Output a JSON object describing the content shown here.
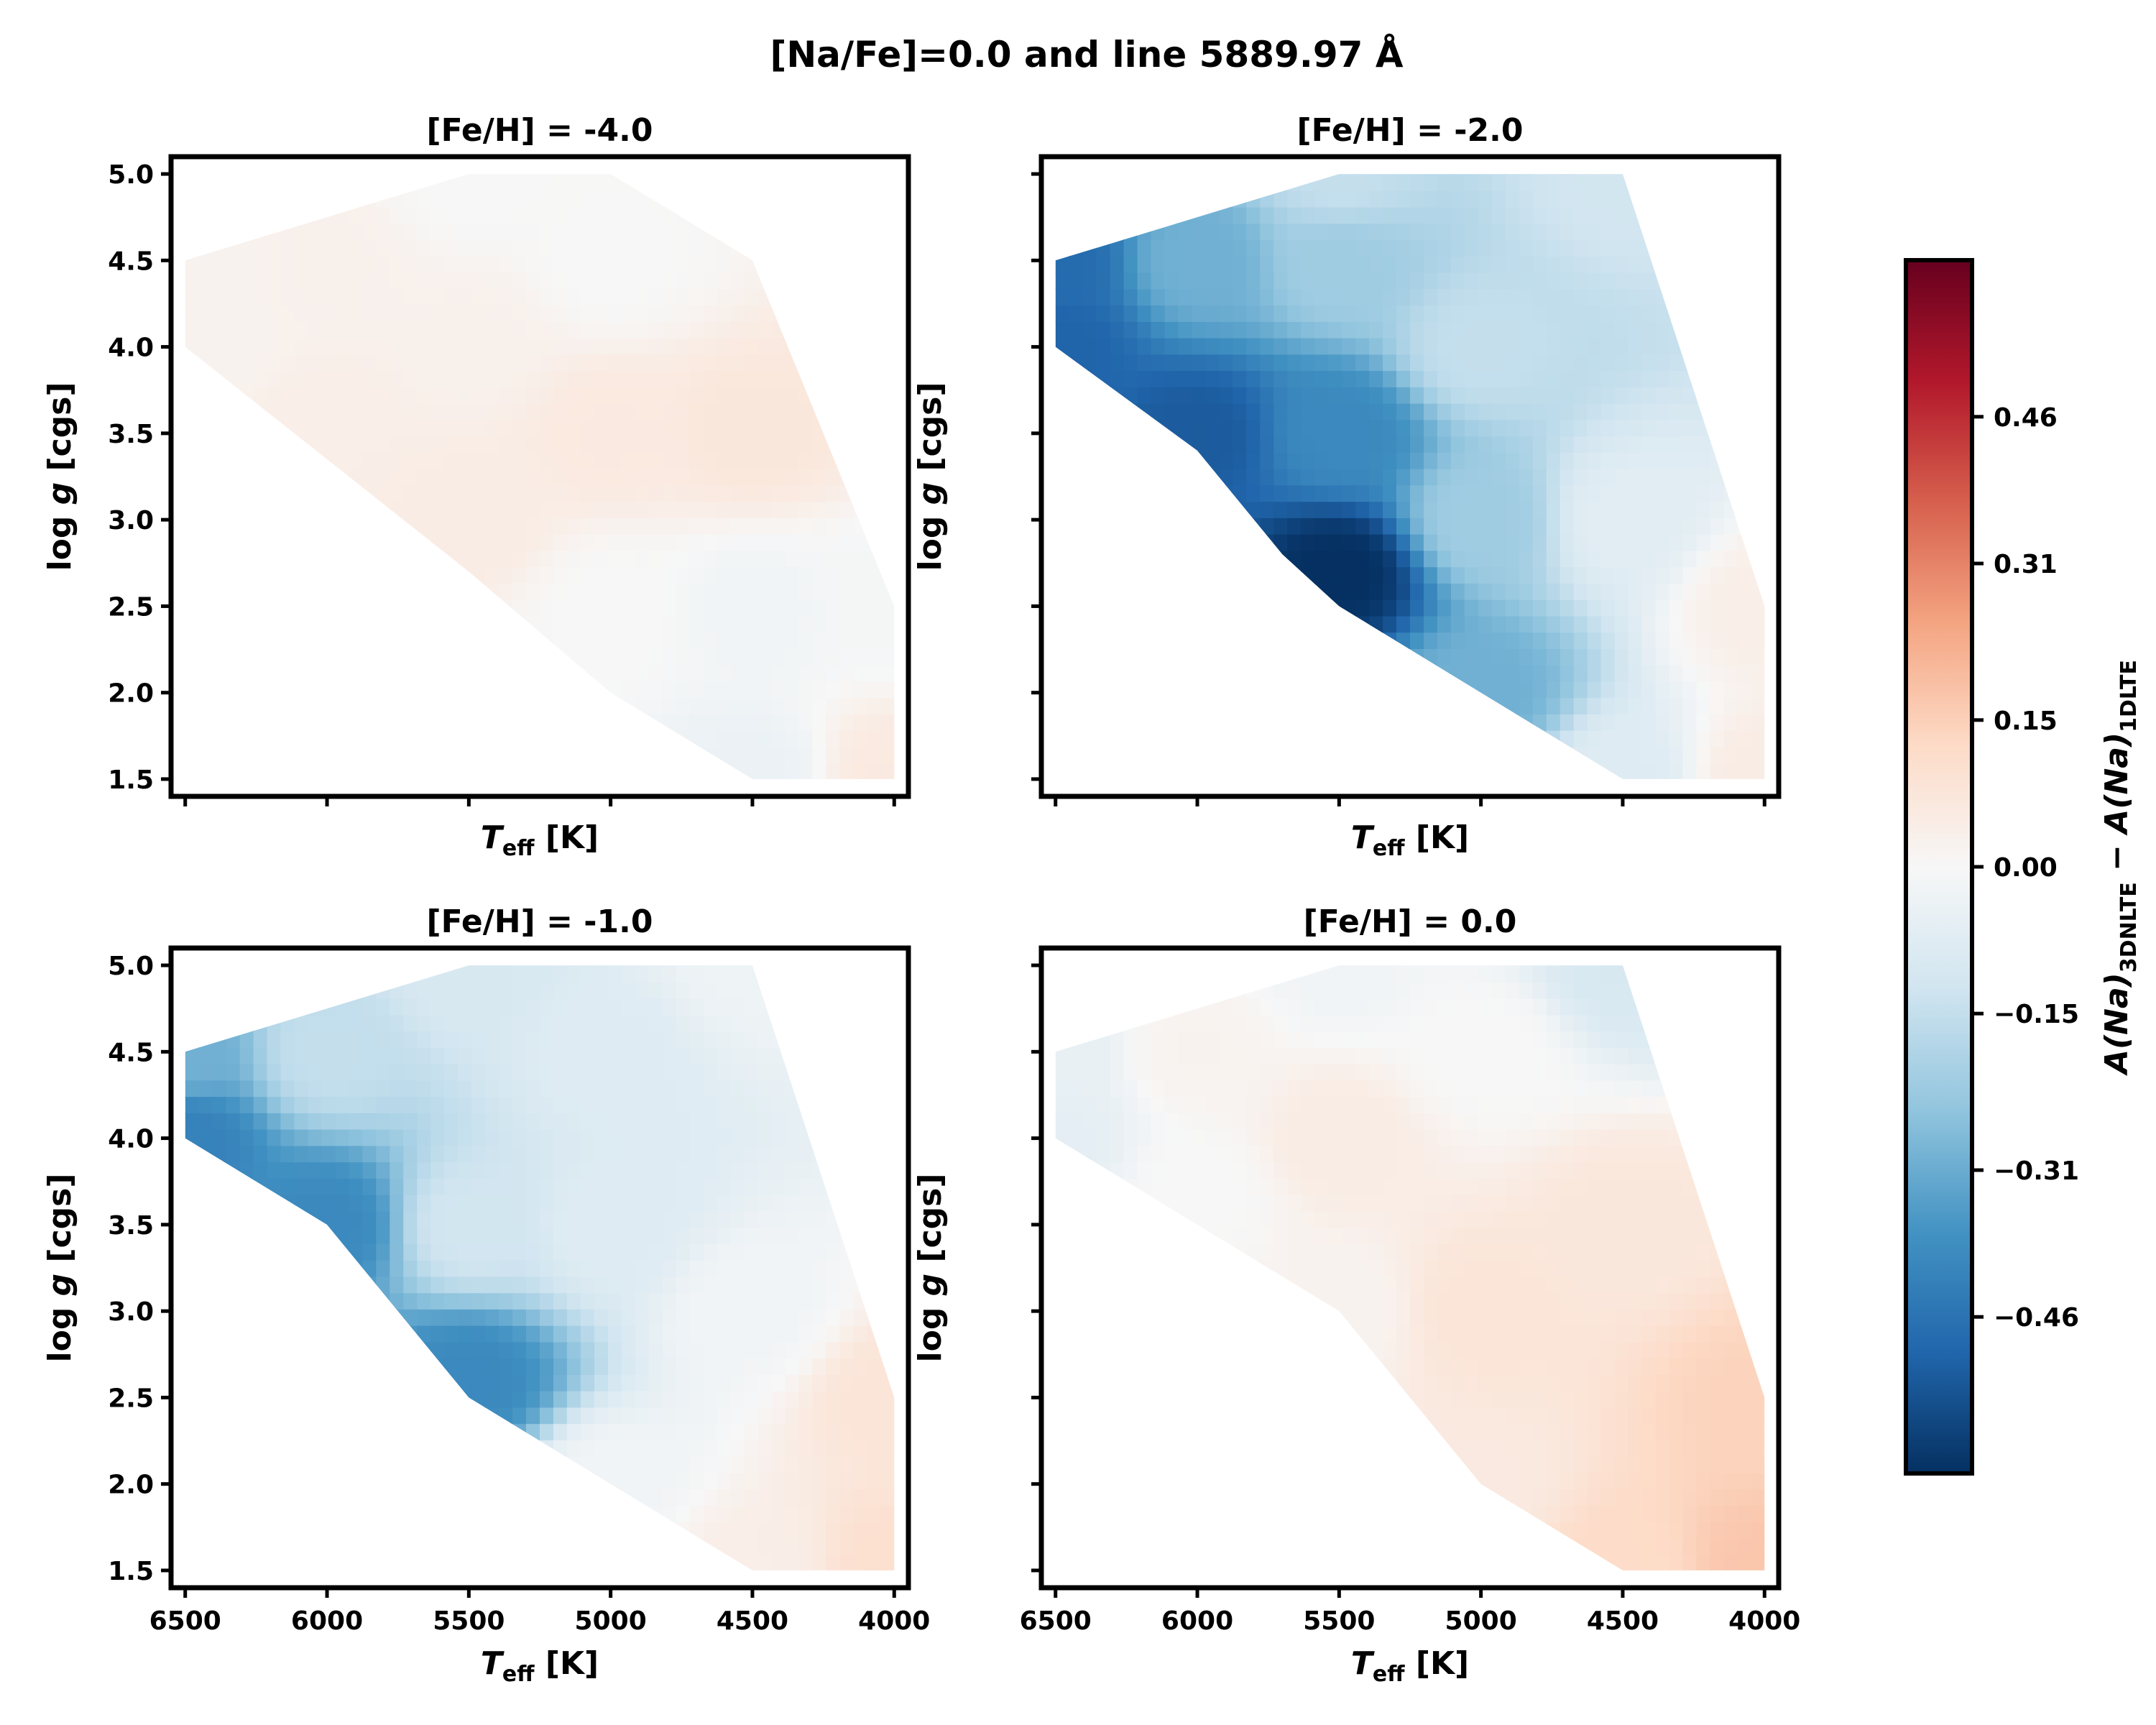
{
  "figure": {
    "suptitle": "[Na/Fe]=0.0 and line 5889.97 Å"
  },
  "colorbar": {
    "label_main": "A(Na)",
    "label_sub1": "3DNLTE",
    "label_minus": " − ",
    "label_main2": "A(Na)",
    "label_sub2": "1DLTE",
    "min": -0.62,
    "max": 0.62,
    "ticks": [
      0.46,
      0.31,
      0.15,
      0.0,
      -0.15,
      -0.31,
      -0.46
    ],
    "tick_labels": [
      "0.46",
      "0.31",
      "0.15",
      "0.00",
      "−0.15",
      "−0.31",
      "−0.46"
    ],
    "colors": {
      "low": "#053061",
      "mid": "#f7f7f7",
      "high": "#67001f"
    }
  },
  "axes_common": {
    "xlabel_main": "T",
    "xlabel_sub": "eff",
    "xlabel_unit": " [K]",
    "ylabel_main": "log ",
    "ylabel_g": "g",
    "ylabel_unit": " [cgs]",
    "xlim": [
      6550,
      3950
    ],
    "ylim": [
      5.1,
      1.4
    ],
    "xticks": [
      6500,
      6000,
      5500,
      5000,
      4500,
      4000
    ],
    "xtick_labels": [
      "6500",
      "6000",
      "5500",
      "5000",
      "4500",
      "4000"
    ],
    "yticks": [
      1.5,
      2.0,
      2.5,
      3.0,
      3.5,
      4.0,
      4.5,
      5.0
    ],
    "ytick_labels": [
      "1.5",
      "2.0",
      "2.5",
      "3.0",
      "3.5",
      "4.0",
      "4.5",
      "5.0"
    ]
  },
  "chart_data": [
    {
      "type": "heatmap",
      "title": "[Fe/H] = -4.0",
      "xlabel": "T_eff [K]",
      "ylabel": "log g [cgs]",
      "region": [
        [
          6500,
          4.5
        ],
        [
          6500,
          4.0
        ],
        [
          5500,
          2.7
        ],
        [
          5000,
          2.0
        ],
        [
          4500,
          1.5
        ],
        [
          4000,
          1.5
        ],
        [
          4000,
          2.5
        ],
        [
          4500,
          4.5
        ],
        [
          5000,
          5.0
        ],
        [
          5500,
          5.0
        ]
      ],
      "values": [
        {
          "teff": 6500,
          "logg": 4.0,
          "value": 0.02
        },
        {
          "teff": 6500,
          "logg": 4.5,
          "value": 0.02
        },
        {
          "teff": 6000,
          "logg": 3.5,
          "value": 0.04
        },
        {
          "teff": 6000,
          "logg": 4.5,
          "value": 0.03
        },
        {
          "teff": 5500,
          "logg": 3.0,
          "value": 0.05
        },
        {
          "teff": 5500,
          "logg": 4.0,
          "value": 0.03
        },
        {
          "teff": 5500,
          "logg": 5.0,
          "value": 0.0
        },
        {
          "teff": 5000,
          "logg": 2.5,
          "value": 0.0
        },
        {
          "teff": 5000,
          "logg": 3.5,
          "value": 0.06
        },
        {
          "teff": 5000,
          "logg": 4.5,
          "value": 0.0
        },
        {
          "teff": 4500,
          "logg": 1.5,
          "value": -0.04
        },
        {
          "teff": 4500,
          "logg": 2.5,
          "value": -0.02
        },
        {
          "teff": 4500,
          "logg": 3.5,
          "value": 0.07
        },
        {
          "teff": 4000,
          "logg": 1.5,
          "value": 0.06
        },
        {
          "teff": 4000,
          "logg": 2.5,
          "value": -0.01
        }
      ]
    },
    {
      "type": "heatmap",
      "title": "[Fe/H] = -2.0",
      "xlabel": "T_eff [K]",
      "ylabel": "log g [cgs]",
      "region": [
        [
          6500,
          4.5
        ],
        [
          6500,
          4.0
        ],
        [
          6000,
          3.4
        ],
        [
          5700,
          2.8
        ],
        [
          5500,
          2.5
        ],
        [
          5000,
          2.0
        ],
        [
          4500,
          1.5
        ],
        [
          4000,
          1.5
        ],
        [
          4000,
          2.5
        ],
        [
          4500,
          5.0
        ],
        [
          5500,
          5.0
        ]
      ],
      "values": [
        {
          "teff": 6500,
          "logg": 4.0,
          "value": -0.5
        },
        {
          "teff": 6500,
          "logg": 4.5,
          "value": -0.48
        },
        {
          "teff": 6000,
          "logg": 3.5,
          "value": -0.52
        },
        {
          "teff": 6000,
          "logg": 4.5,
          "value": -0.3
        },
        {
          "teff": 5500,
          "logg": 2.7,
          "value": -0.62
        },
        {
          "teff": 5500,
          "logg": 3.5,
          "value": -0.4
        },
        {
          "teff": 5500,
          "logg": 4.5,
          "value": -0.22
        },
        {
          "teff": 5500,
          "logg": 5.0,
          "value": -0.15
        },
        {
          "teff": 5000,
          "logg": 2.0,
          "value": -0.3
        },
        {
          "teff": 5000,
          "logg": 3.0,
          "value": -0.22
        },
        {
          "teff": 5000,
          "logg": 4.0,
          "value": -0.15
        },
        {
          "teff": 4500,
          "logg": 1.5,
          "value": -0.08
        },
        {
          "teff": 4500,
          "logg": 3.0,
          "value": -0.07
        },
        {
          "teff": 4500,
          "logg": 5.0,
          "value": -0.12
        },
        {
          "teff": 4000,
          "logg": 1.5,
          "value": 0.05
        },
        {
          "teff": 4000,
          "logg": 2.5,
          "value": 0.04
        }
      ]
    },
    {
      "type": "heatmap",
      "title": "[Fe/H] = -1.0",
      "xlabel": "T_eff [K]",
      "ylabel": "log g [cgs]",
      "region": [
        [
          6500,
          4.5
        ],
        [
          6500,
          4.0
        ],
        [
          6000,
          3.5
        ],
        [
          5500,
          2.5
        ],
        [
          5000,
          2.0
        ],
        [
          4500,
          1.5
        ],
        [
          4000,
          1.5
        ],
        [
          4000,
          2.5
        ],
        [
          4500,
          5.0
        ],
        [
          5500,
          5.0
        ]
      ],
      "values": [
        {
          "teff": 6500,
          "logg": 4.0,
          "value": -0.42
        },
        {
          "teff": 6500,
          "logg": 4.5,
          "value": -0.3
        },
        {
          "teff": 6000,
          "logg": 3.5,
          "value": -0.4
        },
        {
          "teff": 6000,
          "logg": 4.5,
          "value": -0.15
        },
        {
          "teff": 5500,
          "logg": 2.6,
          "value": -0.4
        },
        {
          "teff": 5500,
          "logg": 3.5,
          "value": -0.12
        },
        {
          "teff": 5500,
          "logg": 5.0,
          "value": -0.1
        },
        {
          "teff": 5000,
          "logg": 2.0,
          "value": -0.02
        },
        {
          "teff": 5000,
          "logg": 3.5,
          "value": -0.08
        },
        {
          "teff": 5000,
          "logg": 4.5,
          "value": -0.08
        },
        {
          "teff": 4500,
          "logg": 1.5,
          "value": 0.04
        },
        {
          "teff": 4500,
          "logg": 3.0,
          "value": -0.02
        },
        {
          "teff": 4500,
          "logg": 5.0,
          "value": -0.03
        },
        {
          "teff": 4000,
          "logg": 1.5,
          "value": 0.1
        },
        {
          "teff": 4000,
          "logg": 2.5,
          "value": 0.08
        }
      ]
    },
    {
      "type": "heatmap",
      "title": "[Fe/H] = 0.0",
      "xlabel": "T_eff [K]",
      "ylabel": "log g [cgs]",
      "region": [
        [
          6500,
          4.5
        ],
        [
          6500,
          4.0
        ],
        [
          5500,
          3.0
        ],
        [
          5000,
          2.0
        ],
        [
          4500,
          1.5
        ],
        [
          4000,
          1.5
        ],
        [
          4000,
          2.5
        ],
        [
          4500,
          5.0
        ],
        [
          5500,
          5.0
        ]
      ],
      "values": [
        {
          "teff": 6500,
          "logg": 4.0,
          "value": -0.06
        },
        {
          "teff": 6500,
          "logg": 4.5,
          "value": -0.05
        },
        {
          "teff": 6000,
          "logg": 3.7,
          "value": 0.0
        },
        {
          "teff": 6000,
          "logg": 4.5,
          "value": 0.02
        },
        {
          "teff": 5500,
          "logg": 3.0,
          "value": 0.02
        },
        {
          "teff": 5500,
          "logg": 4.0,
          "value": 0.05
        },
        {
          "teff": 5500,
          "logg": 5.0,
          "value": -0.02
        },
        {
          "teff": 5000,
          "logg": 2.0,
          "value": 0.06
        },
        {
          "teff": 5000,
          "logg": 3.0,
          "value": 0.08
        },
        {
          "teff": 5000,
          "logg": 4.5,
          "value": 0.0
        },
        {
          "teff": 4500,
          "logg": 1.5,
          "value": 0.12
        },
        {
          "teff": 4500,
          "logg": 3.5,
          "value": 0.07
        },
        {
          "teff": 4500,
          "logg": 5.0,
          "value": -0.1
        },
        {
          "teff": 4000,
          "logg": 1.5,
          "value": 0.17
        },
        {
          "teff": 4000,
          "logg": 2.5,
          "value": 0.14
        }
      ]
    }
  ]
}
